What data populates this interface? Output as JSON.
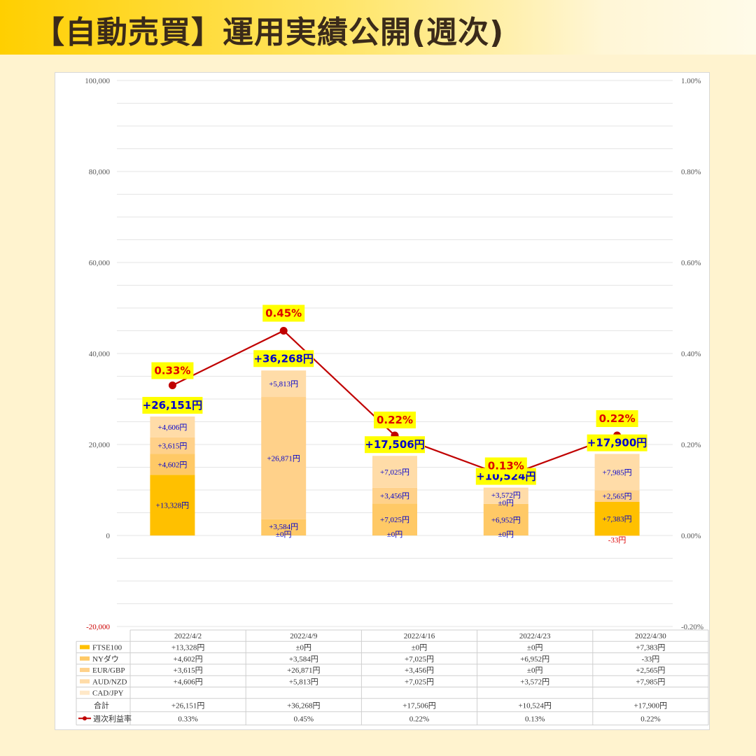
{
  "header": {
    "title": "【自動売買】運用実績公開(週次)"
  },
  "chart_data": {
    "type": "bar",
    "stacked": true,
    "categories": [
      "2022/4/2",
      "2022/4/9",
      "2022/4/16",
      "2022/4/23",
      "2022/4/30"
    ],
    "ylim": [
      -20000,
      100000
    ],
    "y_ticks": [
      "100,000",
      "80,000",
      "60,000",
      "40,000",
      "20,000",
      "0",
      "-20,000"
    ],
    "y2lim": [
      -0.2,
      1.0
    ],
    "y2_ticks": [
      "1.00%",
      "0.80%",
      "0.60%",
      "0.40%",
      "0.20%",
      "0.00%",
      "-0.20%"
    ],
    "grid": true,
    "series": [
      {
        "name": "FTSE100",
        "color": "#ffc000",
        "values": [
          13328,
          0,
          0,
          0,
          7383
        ],
        "labels": [
          "+13,328円",
          "±0円",
          "±0円",
          "±0円",
          "+7,383円"
        ]
      },
      {
        "name": "NYダウ",
        "color": "#ffc966",
        "values": [
          4602,
          3584,
          7025,
          6952,
          -33
        ],
        "labels": [
          "+4,602円",
          "+3,584円",
          "+7,025円",
          "+6,952円",
          "-33円"
        ]
      },
      {
        "name": "EUR/GBP",
        "color": "#ffd18a",
        "values": [
          3615,
          26871,
          3456,
          0,
          2565
        ],
        "labels": [
          "+3,615円",
          "+26,871円",
          "+3,456円",
          "±0円",
          "+2,565円"
        ]
      },
      {
        "name": "AUD/NZD",
        "color": "#ffdca8",
        "values": [
          4606,
          5813,
          7025,
          3572,
          7985
        ],
        "labels": [
          "+4,606円",
          "+5,813円",
          "+7,025円",
          "+3,572円",
          "+7,985円"
        ]
      },
      {
        "name": "CAD/JPY",
        "color": "#ffe8c8",
        "values": [
          0,
          0,
          0,
          0,
          0
        ],
        "labels": [
          "",
          "",
          "",
          "",
          ""
        ]
      }
    ],
    "totals": {
      "name": "合計",
      "values": [
        26151,
        36268,
        17506,
        10524,
        17900
      ],
      "labels": [
        "+26,151円",
        "+36,268円",
        "+17,506円",
        "+10,524円",
        "+17,900円"
      ]
    },
    "line": {
      "name": "週次利益率",
      "color": "#c00000",
      "values": [
        0.33,
        0.45,
        0.22,
        0.13,
        0.22
      ],
      "labels": [
        "0.33%",
        "0.45%",
        "0.22%",
        "0.13%",
        "0.22%"
      ]
    }
  }
}
